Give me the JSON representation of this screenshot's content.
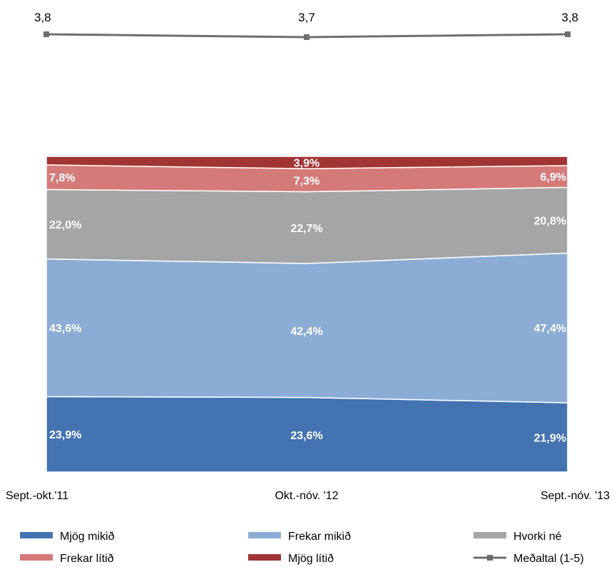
{
  "chart_data": {
    "type": "area",
    "stacked": true,
    "percent": true,
    "categories": [
      "Sept.-okt.'11",
      "Okt.-nóv. '12",
      "Sept.-nóv. '13"
    ],
    "series": [
      {
        "name": "Mjög mikið",
        "color": "#4373b0",
        "values": [
          23.9,
          23.6,
          21.9
        ],
        "labels": [
          "23,9%",
          "23,6%",
          "21,9%"
        ]
      },
      {
        "name": "Frekar mikið",
        "color": "#8badd5",
        "values": [
          43.6,
          42.4,
          47.4
        ],
        "labels": [
          "43,6%",
          "42,4%",
          "47,4%"
        ]
      },
      {
        "name": "Hvorki né",
        "color": "#a5a5a5",
        "values": [
          22.0,
          22.7,
          20.8
        ],
        "labels": [
          "22,0%",
          "22,7%",
          "20,8%"
        ]
      },
      {
        "name": "Frekar lítið",
        "color": "#d47b79",
        "values": [
          7.8,
          7.3,
          6.9
        ],
        "labels": [
          "7,8%",
          "7,3%",
          "6,9%"
        ]
      },
      {
        "name": "Mjög lítið",
        "color": "#a03533",
        "values": [
          2.7,
          3.9,
          2.9
        ],
        "labels": [
          "",
          "3,9%",
          ""
        ]
      }
    ],
    "average": {
      "name": "Meðaltal (1-5)",
      "color": "#6e6e6e",
      "values": [
        3.8,
        3.7,
        3.8
      ],
      "labels": [
        "3,8",
        "3,7",
        "3,8"
      ]
    },
    "ylim": [
      0,
      100
    ],
    "grid": false,
    "legend_position": "bottom"
  }
}
